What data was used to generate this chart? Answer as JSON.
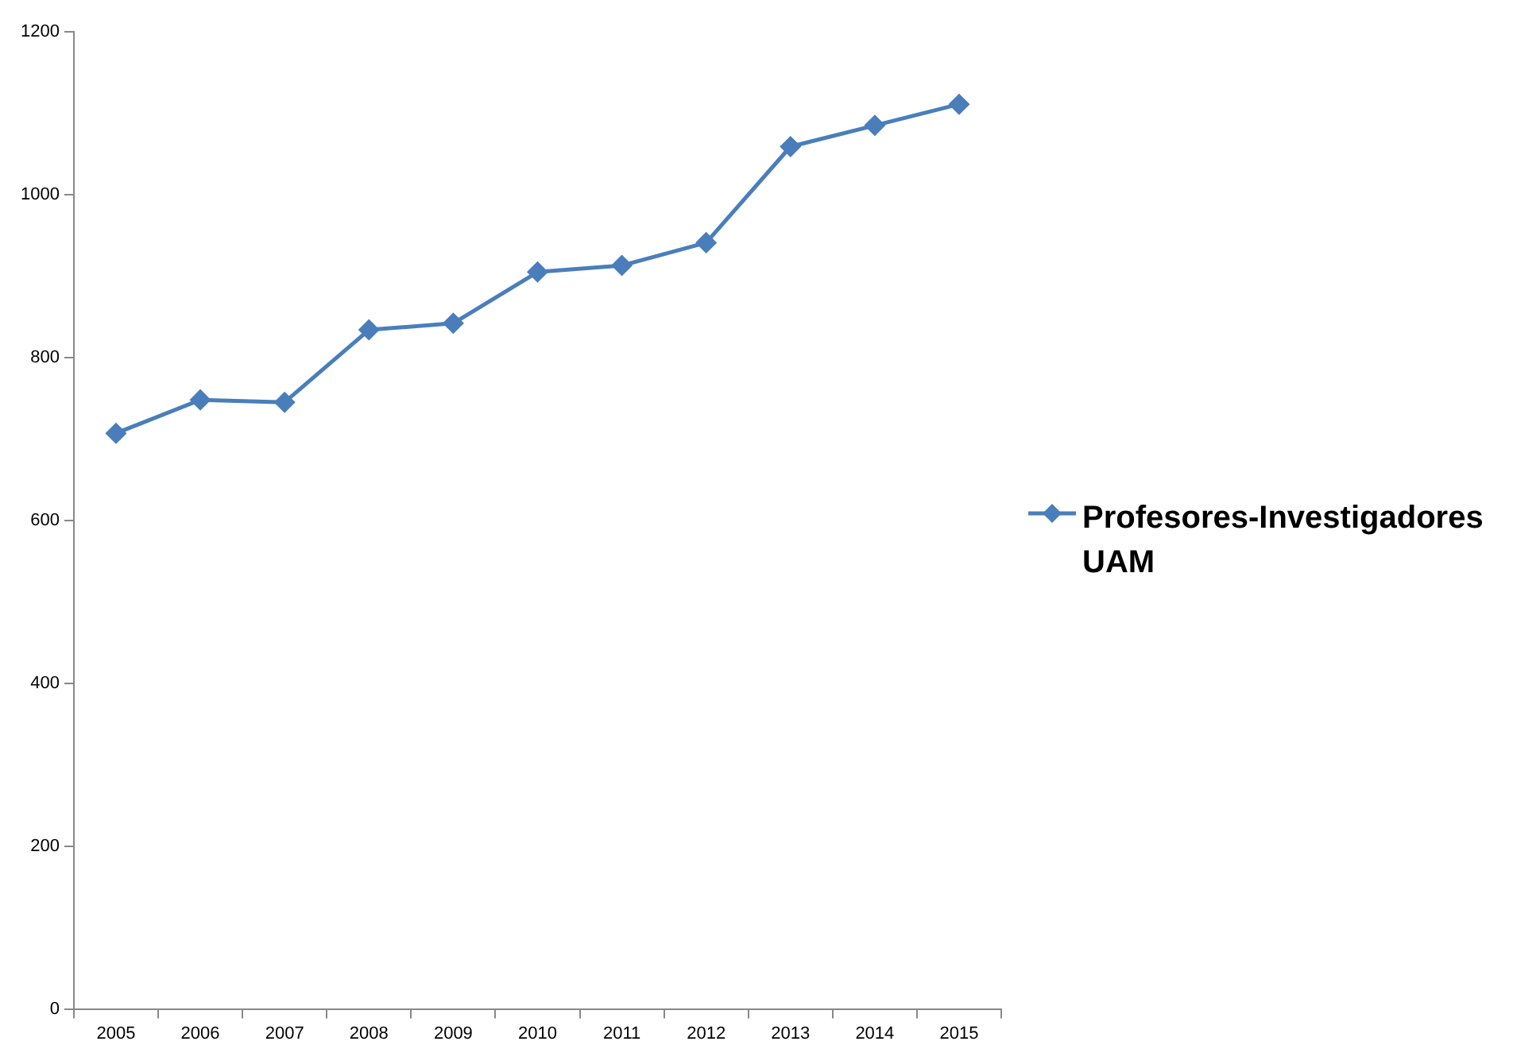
{
  "chart_data": {
    "type": "line",
    "categories": [
      "2005",
      "2006",
      "2007",
      "2008",
      "2009",
      "2010",
      "2011",
      "2012",
      "2013",
      "2014",
      "2015"
    ],
    "series": [
      {
        "name": "Profesores-Investigadores UAM",
        "color": "#4a7ebb",
        "values": [
          707,
          748,
          745,
          834,
          842,
          905,
          913,
          941,
          1059,
          1085,
          1111
        ]
      }
    ],
    "ylim": [
      0,
      1200
    ],
    "yticks": [
      0,
      200,
      400,
      600,
      800,
      1000,
      1200
    ],
    "grid": false,
    "legend": "right",
    "marker": "diamond",
    "line_style": "solid"
  }
}
